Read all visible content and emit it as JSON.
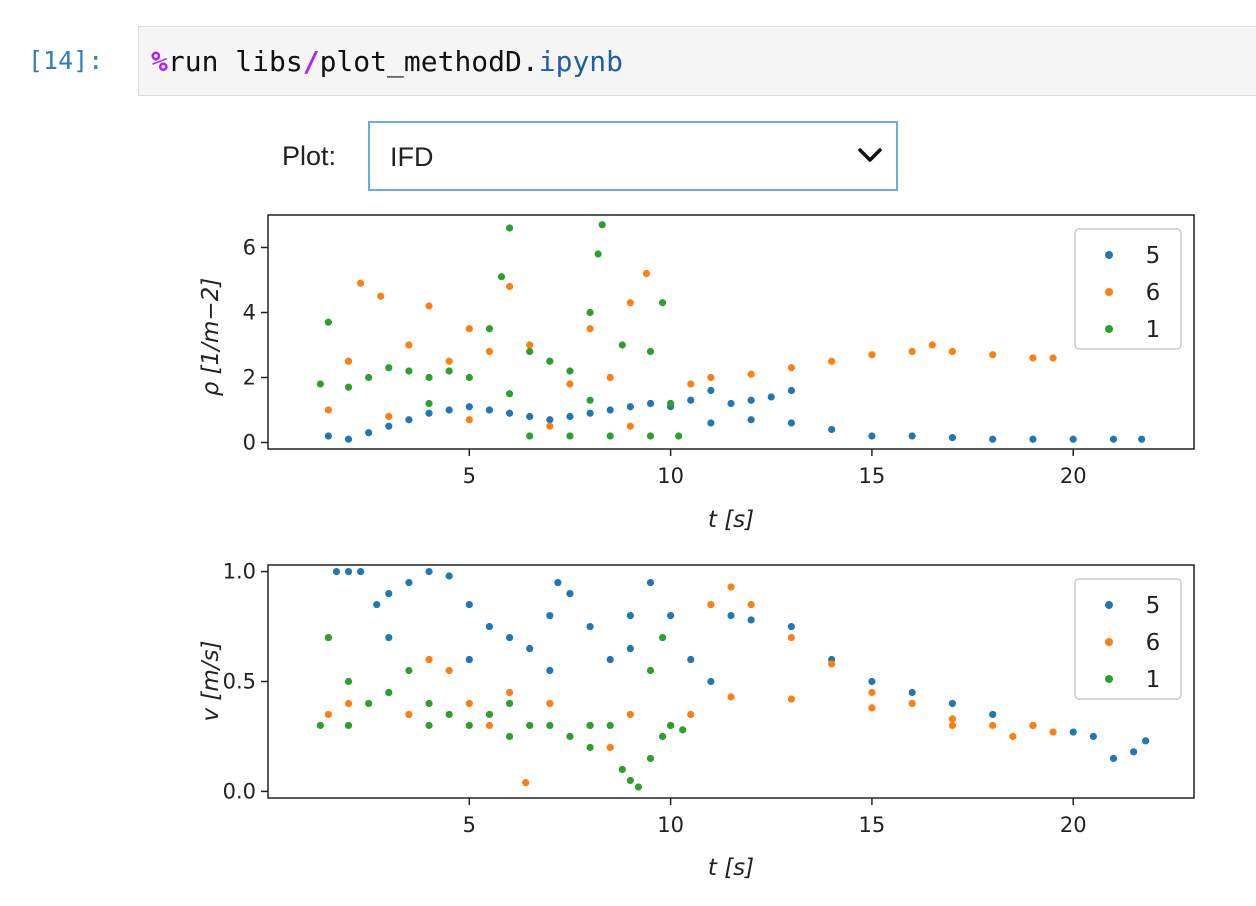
{
  "cell": {
    "prompt": "[14]:",
    "code_magic": "%",
    "code_part1": "run libs",
    "code_slash": "/",
    "code_part2": "plot_methodD.",
    "code_ext": "ipynb"
  },
  "widget": {
    "label": "Plot:",
    "selected": "IFD",
    "icon": "chevron-down-icon"
  },
  "colors": {
    "5": "#1f77b4",
    "6": "#ff7f0e",
    "1": "#2ca02c"
  },
  "chart_data": [
    {
      "type": "scatter",
      "title": "",
      "xlabel": "t [s]",
      "ylabel": "ρ [1/m−2]",
      "xlim": [
        0.0,
        23.0
      ],
      "ylim": [
        -0.2,
        7.0
      ],
      "xticks": [
        "5",
        "10",
        "15",
        "20"
      ],
      "yticks": [
        "0",
        "2",
        "4",
        "6"
      ],
      "legend": [
        "5",
        "6",
        "1"
      ],
      "legend_position": "top-right",
      "series": [
        {
          "name": "5",
          "color": "#1f77b4",
          "points": [
            [
              1.5,
              0.2
            ],
            [
              2.0,
              0.1
            ],
            [
              2.5,
              0.3
            ],
            [
              3.0,
              0.5
            ],
            [
              3.5,
              0.7
            ],
            [
              4.0,
              0.9
            ],
            [
              4.5,
              1.0
            ],
            [
              5.0,
              1.1
            ],
            [
              5.5,
              1.0
            ],
            [
              6.0,
              0.9
            ],
            [
              6.5,
              0.8
            ],
            [
              7.0,
              0.7
            ],
            [
              7.5,
              0.8
            ],
            [
              8.0,
              0.9
            ],
            [
              8.5,
              1.0
            ],
            [
              9.0,
              1.1
            ],
            [
              9.5,
              1.2
            ],
            [
              10.0,
              1.1
            ],
            [
              10.5,
              1.3
            ],
            [
              11.0,
              1.6
            ],
            [
              11.5,
              1.2
            ],
            [
              12.0,
              1.3
            ],
            [
              12.5,
              1.4
            ],
            [
              13.0,
              1.6
            ],
            [
              11.0,
              0.6
            ],
            [
              12.0,
              0.7
            ],
            [
              13.0,
              0.6
            ],
            [
              14.0,
              0.4
            ],
            [
              15.0,
              0.2
            ],
            [
              16.0,
              0.2
            ],
            [
              17.0,
              0.15
            ],
            [
              18.0,
              0.1
            ],
            [
              19.0,
              0.1
            ],
            [
              20.0,
              0.1
            ],
            [
              21.0,
              0.1
            ],
            [
              21.7,
              0.1
            ]
          ]
        },
        {
          "name": "6",
          "color": "#ff7f0e",
          "points": [
            [
              1.5,
              1.0
            ],
            [
              2.0,
              2.5
            ],
            [
              2.3,
              4.9
            ],
            [
              2.8,
              4.5
            ],
            [
              3.5,
              3.0
            ],
            [
              4.0,
              4.2
            ],
            [
              4.5,
              2.5
            ],
            [
              5.0,
              3.5
            ],
            [
              5.5,
              2.8
            ],
            [
              6.0,
              4.8
            ],
            [
              6.5,
              3.0
            ],
            [
              7.0,
              2.5
            ],
            [
              7.5,
              1.8
            ],
            [
              8.0,
              3.5
            ],
            [
              8.5,
              2.0
            ],
            [
              9.0,
              4.3
            ],
            [
              9.4,
              5.2
            ],
            [
              10.0,
              1.2
            ],
            [
              10.5,
              1.8
            ],
            [
              11.0,
              2.0
            ],
            [
              12.0,
              2.1
            ],
            [
              13.0,
              2.3
            ],
            [
              14.0,
              2.5
            ],
            [
              15.0,
              2.7
            ],
            [
              16.0,
              2.8
            ],
            [
              16.5,
              3.0
            ],
            [
              17.0,
              2.8
            ],
            [
              18.0,
              2.7
            ],
            [
              19.0,
              2.6
            ],
            [
              19.5,
              2.6
            ],
            [
              3.0,
              0.8
            ],
            [
              5.0,
              0.7
            ],
            [
              7.0,
              0.5
            ],
            [
              9.0,
              0.5
            ]
          ]
        },
        {
          "name": "1",
          "color": "#2ca02c",
          "points": [
            [
              1.3,
              1.8
            ],
            [
              1.5,
              3.7
            ],
            [
              2.0,
              1.7
            ],
            [
              2.5,
              2.0
            ],
            [
              3.0,
              2.3
            ],
            [
              3.5,
              2.2
            ],
            [
              4.0,
              2.0
            ],
            [
              4.5,
              2.2
            ],
            [
              5.0,
              2.0
            ],
            [
              5.5,
              3.5
            ],
            [
              5.8,
              5.1
            ],
            [
              6.0,
              6.6
            ],
            [
              6.5,
              2.8
            ],
            [
              7.0,
              2.5
            ],
            [
              7.5,
              2.2
            ],
            [
              8.0,
              4.0
            ],
            [
              8.2,
              5.8
            ],
            [
              8.3,
              6.7
            ],
            [
              8.8,
              3.0
            ],
            [
              9.5,
              2.8
            ],
            [
              9.8,
              4.3
            ],
            [
              10.0,
              1.2
            ],
            [
              6.5,
              0.2
            ],
            [
              7.5,
              0.2
            ],
            [
              8.5,
              0.2
            ],
            [
              9.5,
              0.2
            ],
            [
              10.2,
              0.2
            ],
            [
              4.0,
              1.2
            ],
            [
              6.0,
              1.5
            ],
            [
              8.0,
              1.3
            ]
          ]
        }
      ]
    },
    {
      "type": "scatter",
      "title": "",
      "xlabel": "t [s]",
      "ylabel": "v [m/s]",
      "xlim": [
        0.0,
        23.0
      ],
      "ylim": [
        -0.03,
        1.03
      ],
      "xticks": [
        "5",
        "10",
        "15",
        "20"
      ],
      "yticks": [
        "0.0",
        "0.5",
        "1.0"
      ],
      "legend": [
        "5",
        "6",
        "1"
      ],
      "legend_position": "top-right",
      "series": [
        {
          "name": "5",
          "color": "#1f77b4",
          "points": [
            [
              1.7,
              1.0
            ],
            [
              2.0,
              1.0
            ],
            [
              2.3,
              1.0
            ],
            [
              2.7,
              0.85
            ],
            [
              3.0,
              0.9
            ],
            [
              3.5,
              0.95
            ],
            [
              4.0,
              1.0
            ],
            [
              4.5,
              0.98
            ],
            [
              5.0,
              0.85
            ],
            [
              5.5,
              0.75
            ],
            [
              6.0,
              0.7
            ],
            [
              6.5,
              0.65
            ],
            [
              7.0,
              0.8
            ],
            [
              7.2,
              0.95
            ],
            [
              7.5,
              0.9
            ],
            [
              8.0,
              0.75
            ],
            [
              8.5,
              0.6
            ],
            [
              9.0,
              0.8
            ],
            [
              9.5,
              0.95
            ],
            [
              10.0,
              0.8
            ],
            [
              10.5,
              0.6
            ],
            [
              11.0,
              0.5
            ],
            [
              11.5,
              0.8
            ],
            [
              12.0,
              0.78
            ],
            [
              13.0,
              0.75
            ],
            [
              14.0,
              0.6
            ],
            [
              15.0,
              0.5
            ],
            [
              16.0,
              0.45
            ],
            [
              17.0,
              0.4
            ],
            [
              18.0,
              0.35
            ],
            [
              19.0,
              0.3
            ],
            [
              20.0,
              0.27
            ],
            [
              20.5,
              0.25
            ],
            [
              21.0,
              0.15
            ],
            [
              21.5,
              0.18
            ],
            [
              21.8,
              0.23
            ],
            [
              3.0,
              0.7
            ],
            [
              5.0,
              0.6
            ],
            [
              7.0,
              0.55
            ],
            [
              9.0,
              0.65
            ]
          ]
        },
        {
          "name": "6",
          "color": "#ff7f0e",
          "points": [
            [
              1.5,
              0.7
            ],
            [
              2.0,
              0.4
            ],
            [
              3.0,
              0.45
            ],
            [
              4.0,
              0.6
            ],
            [
              4.5,
              0.55
            ],
            [
              5.0,
              0.4
            ],
            [
              6.0,
              0.45
            ],
            [
              6.4,
              0.04
            ],
            [
              7.0,
              0.4
            ],
            [
              8.0,
              0.3
            ],
            [
              8.5,
              0.2
            ],
            [
              9.0,
              0.35
            ],
            [
              10.0,
              0.3
            ],
            [
              10.5,
              0.35
            ],
            [
              11.0,
              0.85
            ],
            [
              11.5,
              0.93
            ],
            [
              12.0,
              0.85
            ],
            [
              13.0,
              0.7
            ],
            [
              14.0,
              0.58
            ],
            [
              15.0,
              0.45
            ],
            [
              16.0,
              0.4
            ],
            [
              17.0,
              0.33
            ],
            [
              18.0,
              0.3
            ],
            [
              19.0,
              0.3
            ],
            [
              19.5,
              0.27
            ],
            [
              11.5,
              0.43
            ],
            [
              13.0,
              0.42
            ],
            [
              15.0,
              0.38
            ],
            [
              17.0,
              0.3
            ],
            [
              18.5,
              0.25
            ],
            [
              1.5,
              0.35
            ],
            [
              3.5,
              0.35
            ],
            [
              5.5,
              0.3
            ]
          ]
        },
        {
          "name": "1",
          "color": "#2ca02c",
          "points": [
            [
              1.3,
              0.3
            ],
            [
              1.5,
              0.7
            ],
            [
              2.0,
              0.5
            ],
            [
              2.5,
              0.4
            ],
            [
              3.0,
              0.45
            ],
            [
              3.5,
              0.55
            ],
            [
              4.0,
              0.4
            ],
            [
              4.5,
              0.35
            ],
            [
              5.0,
              0.3
            ],
            [
              5.5,
              0.35
            ],
            [
              6.0,
              0.4
            ],
            [
              6.5,
              0.3
            ],
            [
              7.0,
              0.3
            ],
            [
              7.5,
              0.25
            ],
            [
              8.0,
              0.2
            ],
            [
              8.5,
              0.3
            ],
            [
              8.8,
              0.1
            ],
            [
              9.0,
              0.05
            ],
            [
              9.2,
              0.02
            ],
            [
              9.5,
              0.15
            ],
            [
              9.8,
              0.25
            ],
            [
              10.0,
              0.3
            ],
            [
              10.3,
              0.28
            ],
            [
              9.5,
              0.55
            ],
            [
              9.8,
              0.7
            ],
            [
              2.0,
              0.3
            ],
            [
              4.0,
              0.3
            ],
            [
              6.0,
              0.25
            ],
            [
              8.0,
              0.3
            ]
          ]
        }
      ]
    }
  ]
}
